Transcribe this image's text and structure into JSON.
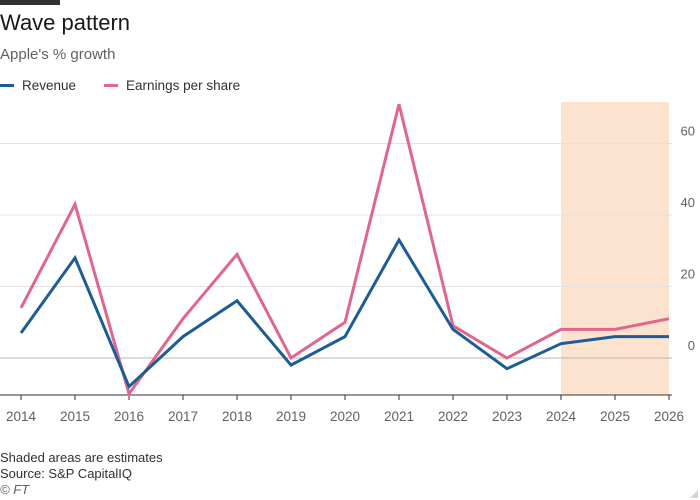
{
  "header": {
    "title": "Wave pattern",
    "subtitle": "Apple's % growth"
  },
  "footer": {
    "note": "Shaded areas are estimates",
    "source": "Source: S&P CapitalIQ",
    "copyright": "© FT"
  },
  "colors": {
    "revenue": "#1d5c96",
    "eps": "#e0668f",
    "shade": "#fbe3d0",
    "grid": "#e7e1dc",
    "axis": "#66605c"
  },
  "chart_data": {
    "type": "line",
    "title": "Wave pattern",
    "subtitle": "Apple's % growth",
    "xlabel": "",
    "ylabel": "",
    "categories": [
      "2014",
      "2015",
      "2016",
      "2017",
      "2018",
      "2019",
      "2020",
      "2021",
      "2022",
      "2023",
      "2024",
      "2025",
      "2026"
    ],
    "series": [
      {
        "name": "Revenue",
        "values": [
          7,
          28,
          -8,
          6,
          16,
          -2,
          6,
          33,
          8,
          -3,
          4,
          6,
          6
        ]
      },
      {
        "name": "Earnings per share",
        "values": [
          14,
          43,
          -10,
          11,
          29,
          0,
          10,
          71,
          9,
          0,
          8,
          8,
          11
        ]
      }
    ],
    "y_ticks": [
      "60",
      "40",
      "20",
      "0"
    ],
    "ylim": [
      -10,
      72
    ],
    "estimate_range": [
      "2024",
      "2026"
    ],
    "legend": "top-left",
    "grid": true
  }
}
